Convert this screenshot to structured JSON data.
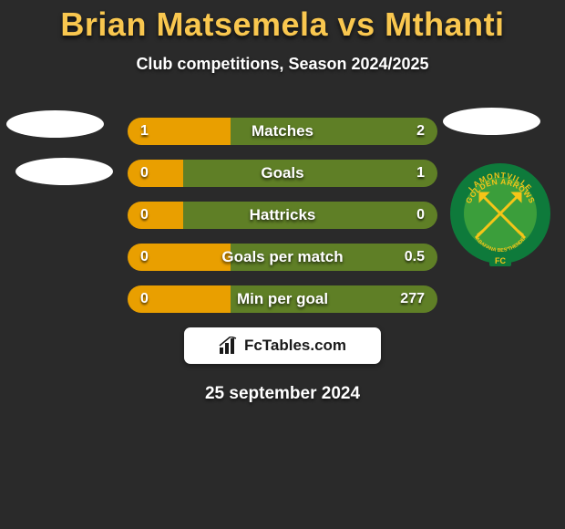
{
  "title": "Brian Matsemela vs Mthanti",
  "subtitle": "Club competitions, Season 2024/2025",
  "date": "25 september 2024",
  "brand": "FcTables.com",
  "colors": {
    "left": "#e99f00",
    "right": "#5f7f26",
    "track": "#3a3a3a"
  },
  "stats": [
    {
      "label": "Matches",
      "left_val": "1",
      "right_val": "2",
      "left_pct": 33.3,
      "right_pct": 66.7
    },
    {
      "label": "Goals",
      "left_val": "0",
      "right_val": "1",
      "left_pct": 18,
      "right_pct": 82
    },
    {
      "label": "Hattricks",
      "left_val": "0",
      "right_val": "0",
      "left_pct": 18,
      "right_pct": 82
    },
    {
      "label": "Goals per match",
      "left_val": "0",
      "right_val": "0.5",
      "left_pct": 33.3,
      "right_pct": 66.7
    },
    {
      "label": "Min per goal",
      "left_val": "0",
      "right_val": "277",
      "left_pct": 33.3,
      "right_pct": 66.7
    }
  ],
  "badge_right_2": {
    "outer_text_top": "LAMONTVILLE",
    "outer_text_mid": "GOLDEN ARROWS",
    "inner_text": "ABAFANA BES'THENDE",
    "bottom_text": "FC",
    "ring_color": "#0e7a3b",
    "ring_text_color": "#f5c518",
    "field_color": "#3b9e3b",
    "arrow_color": "#f5c518"
  }
}
